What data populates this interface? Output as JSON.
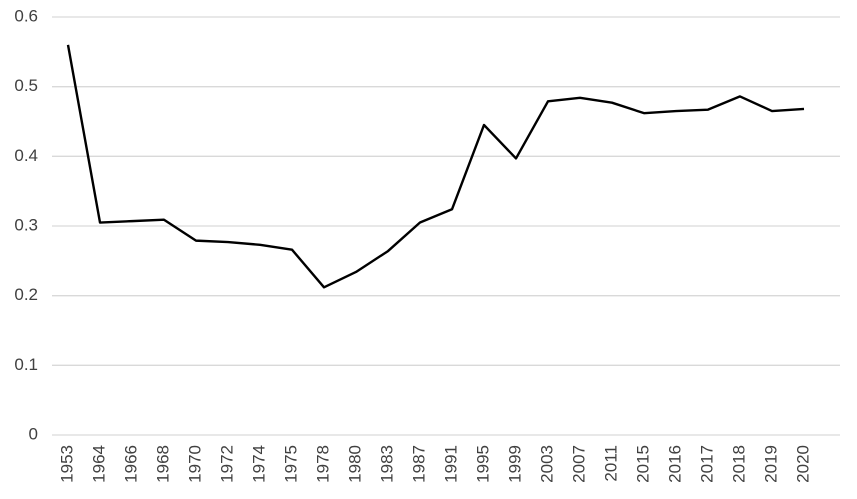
{
  "chart_data": {
    "type": "line",
    "categories": [
      "1953",
      "1964",
      "1966",
      "1968",
      "1970",
      "1972",
      "1974",
      "1975",
      "1978",
      "1980",
      "1983",
      "1987",
      "1991",
      "1995",
      "1999",
      "2003",
      "2007",
      "2011",
      "2015",
      "2016",
      "2017",
      "2018",
      "2019",
      "2020"
    ],
    "values": [
      0.56,
      0.305,
      0.307,
      0.309,
      0.279,
      0.277,
      0.273,
      0.266,
      0.212,
      0.234,
      0.264,
      0.305,
      0.324,
      0.445,
      0.397,
      0.479,
      0.484,
      0.477,
      0.462,
      0.465,
      0.467,
      0.486,
      0.465,
      0.468
    ],
    "color": "#000000",
    "ylim": [
      0,
      0.6
    ],
    "yticks": [
      0,
      0.1,
      0.2,
      0.3,
      0.4,
      0.5,
      0.6
    ],
    "grid": true
  }
}
